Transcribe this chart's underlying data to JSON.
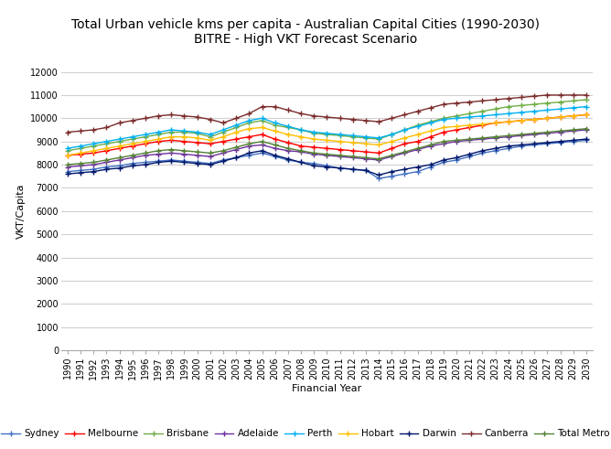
{
  "title_line1": "Total Urban vehicle kms per capita - Australian Capital Cities (1990-2030)",
  "title_line2": "BITRE - High VKT Forecast Scenario",
  "xlabel": "Financial Year",
  "ylabel": "VKT/Capita",
  "ylim": [
    0,
    12000
  ],
  "yticks": [
    0,
    1000,
    2000,
    3000,
    4000,
    5000,
    6000,
    7000,
    8000,
    9000,
    10000,
    11000,
    12000
  ],
  "years": [
    1990,
    1991,
    1992,
    1993,
    1994,
    1995,
    1996,
    1997,
    1998,
    1999,
    2000,
    2001,
    2002,
    2003,
    2004,
    2005,
    2006,
    2007,
    2008,
    2009,
    2010,
    2011,
    2012,
    2013,
    2014,
    2015,
    2016,
    2017,
    2018,
    2019,
    2020,
    2021,
    2022,
    2023,
    2024,
    2025,
    2026,
    2027,
    2028,
    2029,
    2030
  ],
  "series": {
    "Sydney": {
      "color": "#4472C4",
      "data": [
        7700,
        7750,
        7800,
        7900,
        7950,
        8050,
        8100,
        8150,
        8200,
        8150,
        8100,
        8050,
        8200,
        8300,
        8400,
        8500,
        8350,
        8200,
        8100,
        8050,
        7950,
        7850,
        7800,
        7750,
        7400,
        7500,
        7600,
        7700,
        7900,
        8100,
        8200,
        8350,
        8500,
        8600,
        8700,
        8800,
        8850,
        8900,
        8950,
        9000,
        9050
      ],
      "marker": "+"
    },
    "Melbourne": {
      "color": "#FF0000",
      "data": [
        8400,
        8450,
        8500,
        8600,
        8700,
        8800,
        8900,
        9000,
        9050,
        9000,
        8950,
        8900,
        9000,
        9100,
        9200,
        9300,
        9100,
        8950,
        8800,
        8750,
        8700,
        8650,
        8600,
        8550,
        8500,
        8700,
        8900,
        9000,
        9200,
        9400,
        9500,
        9600,
        9700,
        9800,
        9850,
        9900,
        9950,
        10000,
        10050,
        10100,
        10150
      ],
      "marker": "+"
    },
    "Brisbane": {
      "color": "#70AD47",
      "data": [
        8600,
        8700,
        8800,
        8900,
        9000,
        9100,
        9200,
        9300,
        9400,
        9400,
        9350,
        9200,
        9400,
        9600,
        9800,
        9900,
        9700,
        9600,
        9500,
        9350,
        9300,
        9250,
        9200,
        9150,
        9100,
        9300,
        9500,
        9700,
        9850,
        10000,
        10100,
        10200,
        10300,
        10400,
        10500,
        10550,
        10600,
        10650,
        10700,
        10750,
        10800
      ],
      "marker": "+"
    },
    "Adelaide": {
      "color": "#7030A0",
      "data": [
        7900,
        7950,
        8000,
        8100,
        8200,
        8300,
        8400,
        8450,
        8500,
        8450,
        8400,
        8350,
        8500,
        8650,
        8800,
        8850,
        8700,
        8600,
        8550,
        8450,
        8400,
        8350,
        8300,
        8250,
        8200,
        8350,
        8500,
        8650,
        8800,
        8900,
        9000,
        9050,
        9100,
        9150,
        9200,
        9250,
        9300,
        9350,
        9400,
        9450,
        9500
      ],
      "marker": "+"
    },
    "Perth": {
      "color": "#00B0F0",
      "data": [
        8700,
        8800,
        8900,
        9000,
        9100,
        9200,
        9300,
        9400,
        9500,
        9450,
        9400,
        9300,
        9500,
        9700,
        9900,
        10000,
        9800,
        9650,
        9500,
        9400,
        9350,
        9300,
        9250,
        9200,
        9150,
        9300,
        9500,
        9650,
        9800,
        9950,
        10000,
        10050,
        10100,
        10150,
        10200,
        10250,
        10300,
        10350,
        10400,
        10450,
        10500
      ],
      "marker": "+"
    },
    "Hobart": {
      "color": "#FFC000",
      "data": [
        8400,
        8500,
        8600,
        8700,
        8800,
        8900,
        9000,
        9100,
        9200,
        9200,
        9150,
        9050,
        9200,
        9400,
        9550,
        9600,
        9450,
        9300,
        9200,
        9100,
        9050,
        9000,
        8950,
        8900,
        8850,
        9000,
        9150,
        9300,
        9450,
        9600,
        9650,
        9700,
        9750,
        9800,
        9850,
        9900,
        9950,
        10000,
        10050,
        10100,
        10150
      ],
      "marker": "+"
    },
    "Darwin": {
      "color": "#00176B",
      "data": [
        7600,
        7650,
        7700,
        7800,
        7850,
        7950,
        8000,
        8100,
        8150,
        8100,
        8050,
        8000,
        8150,
        8300,
        8500,
        8600,
        8400,
        8250,
        8100,
        7950,
        7900,
        7850,
        7800,
        7750,
        7550,
        7700,
        7800,
        7900,
        8000,
        8200,
        8300,
        8450,
        8600,
        8700,
        8800,
        8850,
        8900,
        8950,
        9000,
        9050,
        9100
      ],
      "marker": "+"
    },
    "Canberra": {
      "color": "#7B2C2C",
      "data": [
        9400,
        9450,
        9500,
        9600,
        9800,
        9900,
        10000,
        10100,
        10150,
        10100,
        10050,
        9950,
        9800,
        10000,
        10200,
        10500,
        10500,
        10350,
        10200,
        10100,
        10050,
        10000,
        9950,
        9900,
        9850,
        10000,
        10150,
        10300,
        10450,
        10600,
        10650,
        10700,
        10750,
        10800,
        10850,
        10900,
        10950,
        11000,
        11000,
        11000,
        11000
      ],
      "marker": "+"
    },
    "Total Metro": {
      "color": "#548235",
      "data": [
        8000,
        8050,
        8100,
        8200,
        8300,
        8400,
        8500,
        8600,
        8650,
        8600,
        8550,
        8500,
        8600,
        8750,
        8900,
        9000,
        8850,
        8700,
        8600,
        8500,
        8450,
        8400,
        8350,
        8300,
        8250,
        8400,
        8550,
        8700,
        8850,
        9000,
        9050,
        9100,
        9150,
        9200,
        9250,
        9300,
        9350,
        9400,
        9450,
        9500,
        9550
      ],
      "marker": "+"
    }
  },
  "background_color": "#FFFFFF",
  "grid_color": "#D0D0D0",
  "title_fontsize": 10,
  "axis_fontsize": 8,
  "tick_fontsize": 7,
  "legend_fontsize": 7.5
}
